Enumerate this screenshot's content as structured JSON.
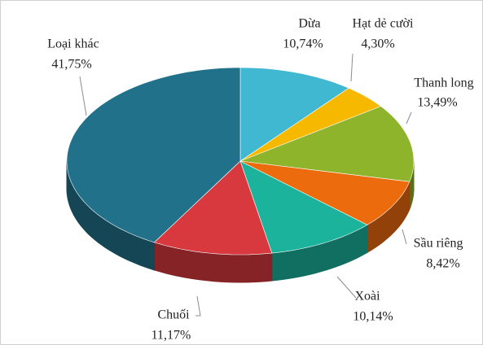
{
  "chart_data": {
    "type": "pie",
    "categories": [
      "Dừa",
      "Hạt dẻ cười",
      "Thanh long",
      "Sầu riêng",
      "Xoài",
      "Chuối",
      "Loại khác"
    ],
    "values": [
      10.74,
      4.3,
      13.49,
      8.42,
      10.14,
      11.17,
      41.75
    ],
    "value_labels": [
      "10,74%",
      "4,30%",
      "13,49%",
      "8,42%",
      "10,14%",
      "11,17%",
      "41,75%"
    ],
    "colors": [
      "#40b8d2",
      "#f6b900",
      "#8db42b",
      "#ec6b0d",
      "#1cb39c",
      "#d8393f",
      "#22718a"
    ]
  }
}
